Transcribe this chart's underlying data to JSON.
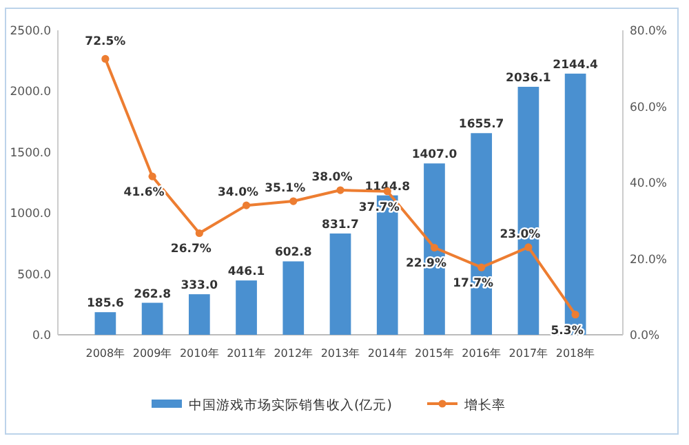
{
  "chart_data": {
    "type": "bar",
    "categories": [
      "2008年",
      "2009年",
      "2010年",
      "2011年",
      "2012年",
      "2013年",
      "2014年",
      "2015年",
      "2016年",
      "2017年",
      "2018年"
    ],
    "series": [
      {
        "name": "中国游戏市场实际销售收入(亿元)",
        "color": "#4a90d0",
        "values": [
          185.6,
          262.8,
          333.0,
          446.1,
          602.8,
          831.7,
          1144.8,
          1407.0,
          1655.7,
          2036.1,
          2144.4
        ],
        "value_labels": [
          "185.6",
          "262.8",
          "333.0",
          "446.1",
          "602.8",
          "831.7",
          "1144.8",
          "1407.0",
          "1655.7",
          "2036.1",
          "2144.4"
        ]
      },
      {
        "name": "增长率",
        "type": "line",
        "axis": "y2",
        "color": "#ed7d31",
        "marker": "circle",
        "values": [
          72.5,
          41.6,
          26.7,
          34.0,
          35.1,
          38.0,
          37.7,
          22.9,
          17.7,
          23.0,
          5.3
        ],
        "value_labels": [
          "72.5%",
          "41.6%",
          "26.7%",
          "34.0%",
          "35.1%",
          "38.0%",
          "37.7%",
          "22.9%",
          "17.7%",
          "23.0%",
          "5.3%"
        ]
      }
    ],
    "ylim": [
      0,
      2500
    ],
    "yticks": [
      {
        "value": 0,
        "label": "0.0"
      },
      {
        "value": 500,
        "label": "500.0"
      },
      {
        "value": 1000,
        "label": "1000.0"
      },
      {
        "value": 1500,
        "label": "1500.0"
      },
      {
        "value": 2000,
        "label": "2000.0"
      },
      {
        "value": 2500,
        "label": "2500.0"
      }
    ],
    "y2lim": [
      0,
      80
    ],
    "y2ticks": [
      {
        "value": 0,
        "label": "0.0%"
      },
      {
        "value": 20,
        "label": "20.0%"
      },
      {
        "value": 40,
        "label": "40.0%"
      },
      {
        "value": 60,
        "label": "60.0%"
      },
      {
        "value": 80,
        "label": "80.0%"
      }
    ],
    "legend": "bottom"
  }
}
